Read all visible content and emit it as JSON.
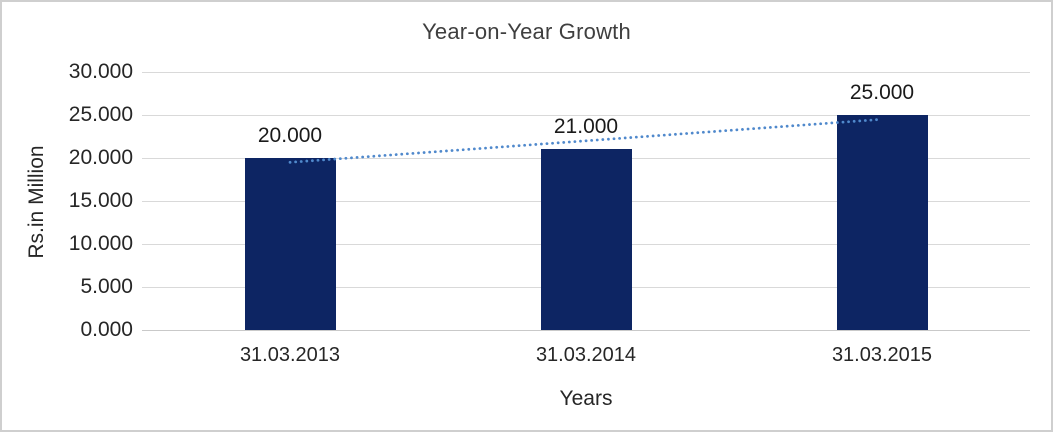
{
  "chart": {
    "title": "Year-on-Year Growth",
    "ylabel": "Rs.in Million",
    "xlabel": "Years"
  },
  "chart_data": {
    "type": "bar",
    "title": "Year-on-Year Growth",
    "categories": [
      "31.03.2013",
      "31.03.2014",
      "31.03.2015"
    ],
    "values": [
      20,
      21,
      25
    ],
    "data_labels": [
      "20.000",
      "21.000",
      "25.000"
    ],
    "xlabel": "Years",
    "ylabel": "Rs.in Million",
    "ylim": [
      0,
      30
    ],
    "y_tick_labels": [
      "0.000",
      "5.000",
      "10.000",
      "15.000",
      "20.000",
      "25.000",
      "30.000"
    ],
    "y_tick_values": [
      0,
      5,
      10,
      15,
      20,
      25,
      30
    ],
    "grid": true,
    "legend": "none",
    "trendline": {
      "type": "linear",
      "style": "dotted"
    },
    "colors": {
      "bar": "#0d2563",
      "trend": "#5089cc",
      "gridline": "#d9d9d9",
      "axis_line": "#c9c9c9",
      "text": "#262626",
      "title": "#3f3f3f",
      "border": "#cfcfcf",
      "background": "#ffffff"
    }
  }
}
